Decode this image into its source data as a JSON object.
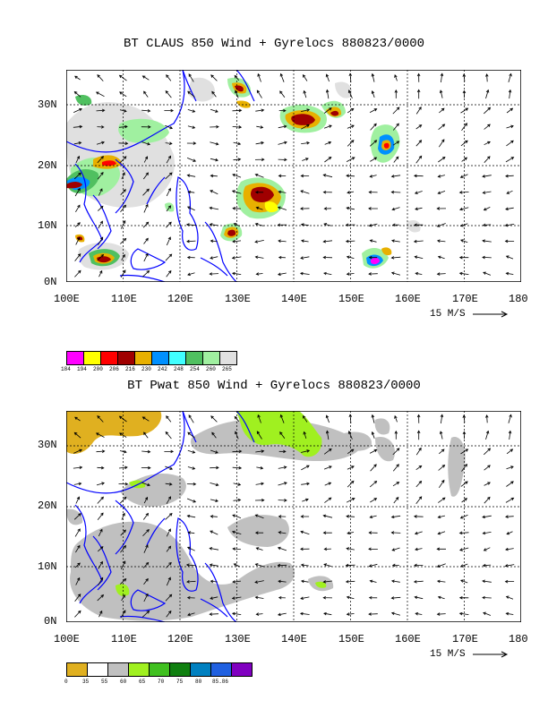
{
  "panels": [
    {
      "title": "BT CLAUS 850 Wind + Gyrelocs 880823/0000",
      "lat_ticks": [
        "30N",
        "20N",
        "10N",
        "0N"
      ],
      "lon_ticks": [
        "100E",
        "110E",
        "120E",
        "130E",
        "140E",
        "150E",
        "160E",
        "170E",
        "180"
      ],
      "scale_text": "15 M/S",
      "colorbar_colors": [
        "#ff00ff",
        "#ffff00",
        "#ff0000",
        "#a00000",
        "#e8b000",
        "#0090ff",
        "#40ffff",
        "#50c060",
        "#a0f0a0",
        "#e0e0e0"
      ],
      "colorbar_labels": [
        "184",
        "194",
        "200",
        "206",
        "216",
        "230",
        "242",
        "248",
        "254",
        "260",
        "265"
      ]
    },
    {
      "title": "BT Pwat 850 Wind + Gyrelocs 880823/0000",
      "lat_ticks": [
        "30N",
        "20N",
        "10N",
        "0N"
      ],
      "lon_ticks": [
        "100E",
        "110E",
        "120E",
        "130E",
        "140E",
        "150E",
        "160E",
        "170E",
        "180"
      ],
      "scale_text": "15 M/S",
      "colorbar_colors": [
        "#e0b020",
        "#ffffff",
        "#c0c0c0",
        "#a0f020",
        "#40c020",
        "#108010",
        "#0080c0",
        "#2060e0",
        "#8000c0"
      ],
      "colorbar_labels": [
        "0",
        "35",
        "55",
        "60",
        "65",
        "70",
        "75",
        "80",
        "85.86"
      ]
    }
  ],
  "colors": {
    "coast": "#0000ff",
    "frame": "#000000"
  }
}
